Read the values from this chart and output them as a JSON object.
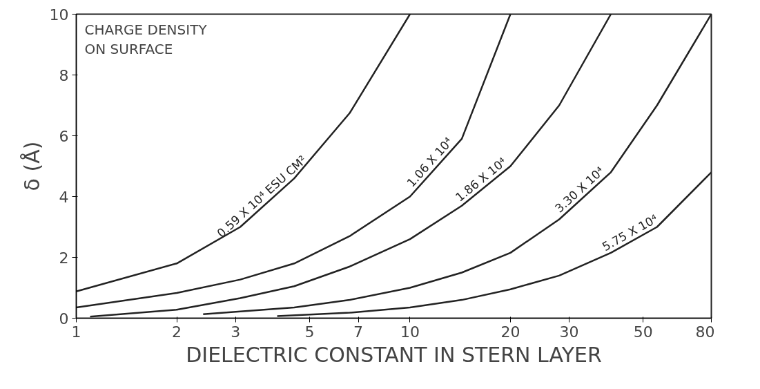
{
  "chart_data": {
    "type": "line",
    "xlabel": "DIELECTRIC CONSTANT IN STERN LAYER",
    "ylabel": "δ (Å)",
    "legend_title": "CHARGE DENSITY\nON SURFACE",
    "log": "x",
    "xlim": [
      1,
      80
    ],
    "ylim": [
      0,
      10
    ],
    "xticks": [
      1,
      2,
      3,
      5,
      7,
      10,
      20,
      30,
      50,
      80
    ],
    "yticks": [
      0,
      2,
      4,
      6,
      8,
      10
    ],
    "grid": false,
    "marker": "none",
    "line_style": "solid",
    "series": [
      {
        "name": "0.59 X 10⁴ ESU CM²",
        "color": "#222222",
        "x": [
          1,
          2,
          3.1,
          4.5,
          6.6,
          10
        ],
        "values": [
          0.88,
          1.8,
          3.0,
          4.6,
          6.75,
          10
        ]
      },
      {
        "name": "1.06 X 10⁴",
        "color": "#222222",
        "x": [
          1,
          2,
          3.1,
          4.5,
          6.6,
          10,
          14.3,
          20
        ],
        "values": [
          0.35,
          0.83,
          1.27,
          1.8,
          2.7,
          4.0,
          5.9,
          10
        ]
      },
      {
        "name": "1.86 X 10⁴",
        "color": "#222222",
        "x": [
          1.1,
          2,
          3.1,
          4.5,
          6.6,
          10,
          14.3,
          20,
          28,
          40
        ],
        "values": [
          0.05,
          0.28,
          0.66,
          1.05,
          1.7,
          2.6,
          3.7,
          5.0,
          7.0,
          10
        ]
      },
      {
        "name": "3.30 X 10⁴",
        "color": "#222222",
        "x": [
          2.4,
          4.5,
          6.6,
          10,
          14.3,
          20,
          28,
          40,
          55,
          80
        ],
        "values": [
          0.13,
          0.35,
          0.6,
          1.0,
          1.5,
          2.15,
          3.25,
          4.8,
          7.0,
          10
        ]
      },
      {
        "name": "5.75 X 10⁴",
        "color": "#222222",
        "x": [
          4,
          6.6,
          10,
          14.3,
          20,
          28,
          40,
          55,
          80
        ],
        "values": [
          0.07,
          0.18,
          0.35,
          0.6,
          0.95,
          1.4,
          2.15,
          3.0,
          4.8
        ]
      }
    ]
  }
}
